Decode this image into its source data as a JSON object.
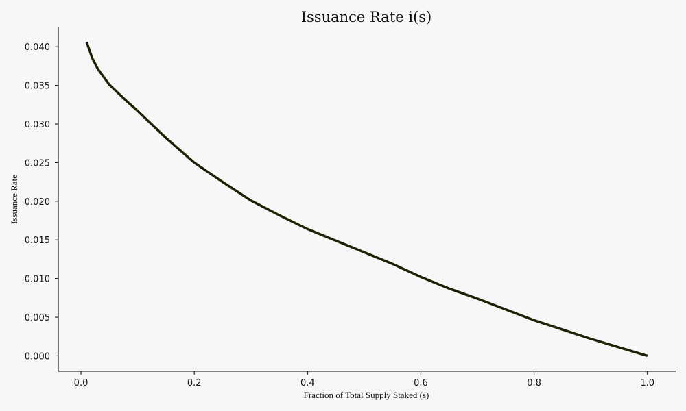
{
  "chart_data": {
    "type": "line",
    "title": "Issuance Rate i(s)",
    "xlabel": "Fraction of Total Supply Staked (s)",
    "ylabel": "Issuance Rate",
    "xlim": [
      -0.04,
      1.05
    ],
    "ylim": [
      -0.002,
      0.0425
    ],
    "grid": false,
    "legend": "none",
    "xticks": [
      0.0,
      0.2,
      0.4,
      0.6,
      0.8,
      1.0
    ],
    "xtick_labels": [
      "0.0",
      "0.2",
      "0.4",
      "0.6",
      "0.8",
      "1.0"
    ],
    "yticks": [
      0.0,
      0.005,
      0.01,
      0.015,
      0.02,
      0.025,
      0.03,
      0.035,
      0.04
    ],
    "ytick_labels": [
      "0.000",
      "0.005",
      "0.010",
      "0.015",
      "0.020",
      "0.025",
      "0.030",
      "0.035",
      "0.040"
    ],
    "line_color": "#1a2200",
    "series": [
      {
        "x": [
          0.01,
          0.02,
          0.03,
          0.05,
          0.08,
          0.1,
          0.15,
          0.2,
          0.25,
          0.3,
          0.35,
          0.4,
          0.45,
          0.5,
          0.55,
          0.6,
          0.65,
          0.7,
          0.75,
          0.8,
          0.85,
          0.9,
          0.95,
          1.0
        ],
        "y": [
          0.0406,
          0.0385,
          0.0371,
          0.0351,
          0.033,
          0.0317,
          0.0282,
          0.025,
          0.0225,
          0.0201,
          0.0182,
          0.0164,
          0.0149,
          0.0134,
          0.0119,
          0.0102,
          0.0087,
          0.0074,
          0.006,
          0.0046,
          0.0034,
          0.0022,
          0.0011,
          0.0
        ]
      }
    ]
  }
}
